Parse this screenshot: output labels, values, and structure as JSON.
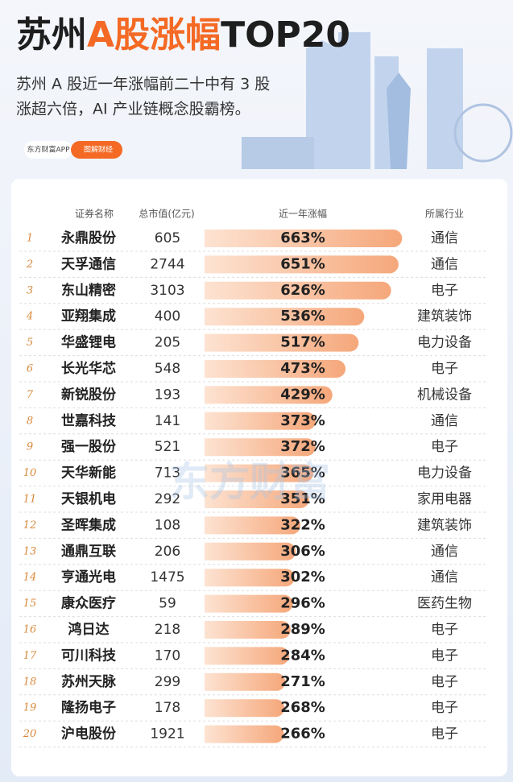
{
  "header": {
    "title": [
      "苏州",
      "A股涨幅",
      "TOP20"
    ],
    "subtitle": [
      "苏州 A 股近一年涨幅前二十中有 3 股",
      "涨超六倍，AI 产业链概念股霸榜。"
    ],
    "brand": "东方财富APP",
    "tag": "图解财经"
  },
  "watermark": "东方财富",
  "table": {
    "columns": [
      "证券名称",
      "总市值(亿元)",
      "近一年涨幅",
      "所属行业"
    ],
    "rows": [
      {
        "rank": 1,
        "name": "永鼎股份",
        "cap": 605,
        "gain": 663,
        "gain_label": "663%",
        "industry": "通信"
      },
      {
        "rank": 2,
        "name": "天孚通信",
        "cap": 2744,
        "gain": 651,
        "gain_label": "651%",
        "industry": "通信"
      },
      {
        "rank": 3,
        "name": "东山精密",
        "cap": 3103,
        "gain": 626,
        "gain_label": "626%",
        "industry": "电子"
      },
      {
        "rank": 4,
        "name": "亚翔集成",
        "cap": 400,
        "gain": 536,
        "gain_label": "536%",
        "industry": "建筑装饰"
      },
      {
        "rank": 5,
        "name": "华盛锂电",
        "cap": 205,
        "gain": 517,
        "gain_label": "517%",
        "industry": "电力设备"
      },
      {
        "rank": 6,
        "name": "长光华芯",
        "cap": 548,
        "gain": 473,
        "gain_label": "473%",
        "industry": "电子"
      },
      {
        "rank": 7,
        "name": "新锐股份",
        "cap": 193,
        "gain": 429,
        "gain_label": "429%",
        "industry": "机械设备"
      },
      {
        "rank": 8,
        "name": "世嘉科技",
        "cap": 141,
        "gain": 373,
        "gain_label": "373%",
        "industry": "通信"
      },
      {
        "rank": 9,
        "name": "强一股份",
        "cap": 521,
        "gain": 372,
        "gain_label": "372%",
        "industry": "电子"
      },
      {
        "rank": 10,
        "name": "天华新能",
        "cap": 713,
        "gain": 365,
        "gain_label": "365%",
        "industry": "电力设备"
      },
      {
        "rank": 11,
        "name": "天银机电",
        "cap": 292,
        "gain": 351,
        "gain_label": "351%",
        "industry": "家用电器"
      },
      {
        "rank": 12,
        "name": "圣晖集成",
        "cap": 108,
        "gain": 322,
        "gain_label": "322%",
        "industry": "建筑装饰"
      },
      {
        "rank": 13,
        "name": "通鼎互联",
        "cap": 206,
        "gain": 306,
        "gain_label": "306%",
        "industry": "通信"
      },
      {
        "rank": 14,
        "name": "亨通光电",
        "cap": 1475,
        "gain": 302,
        "gain_label": "302%",
        "industry": "通信"
      },
      {
        "rank": 15,
        "name": "康众医疗",
        "cap": 59,
        "gain": 296,
        "gain_label": "296%",
        "industry": "医药生物"
      },
      {
        "rank": 16,
        "name": "鸿日达",
        "cap": 218,
        "gain": 289,
        "gain_label": "289%",
        "industry": "电子"
      },
      {
        "rank": 17,
        "name": "可川科技",
        "cap": 170,
        "gain": 284,
        "gain_label": "284%",
        "industry": "电子"
      },
      {
        "rank": 18,
        "name": "苏州天脉",
        "cap": 299,
        "gain": 271,
        "gain_label": "271%",
        "industry": "电子"
      },
      {
        "rank": 19,
        "name": "隆扬电子",
        "cap": 178,
        "gain": 268,
        "gain_label": "268%",
        "industry": "电子"
      },
      {
        "rank": 20,
        "name": "沪电股份",
        "cap": 1921,
        "gain": 266,
        "gain_label": "266%",
        "industry": "电子"
      }
    ]
  }
}
